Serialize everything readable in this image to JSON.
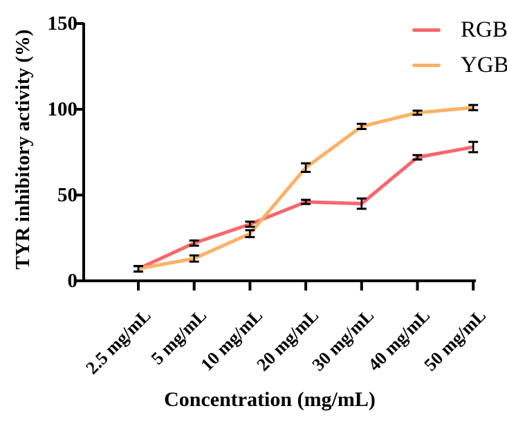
{
  "figure": {
    "background": "#ffffff",
    "axis_color": "#000000"
  },
  "chart_data": {
    "type": "line",
    "title": "",
    "xlabel": "Concentration (mg/mL)",
    "ylabel": "TYR inhibitory activity (%)",
    "categories": [
      "2.5 mg/mL",
      "5 mg/mL",
      "10 mg/mL",
      "20 mg/mL",
      "30 mg/mL",
      "40 mg/mL",
      "50 mg/mL"
    ],
    "ylim": [
      0,
      150
    ],
    "yticks": [
      0,
      50,
      100,
      150
    ],
    "grid": false,
    "legend_position": "top-right",
    "error_bars": true,
    "error_bar_color": "#000000",
    "series": [
      {
        "name": "RGB",
        "color": "#F6676D",
        "values": [
          7,
          22,
          33,
          46,
          45,
          72,
          78
        ],
        "errors": [
          1.6,
          1.5,
          1.5,
          1.2,
          3,
          1.3,
          3
        ]
      },
      {
        "name": "YGB",
        "color": "#FBB266",
        "values": [
          7,
          13,
          27.5,
          66,
          90,
          98,
          101
        ],
        "errors": [
          1.6,
          1.8,
          2,
          2.5,
          1.5,
          1.2,
          1.5
        ]
      }
    ]
  }
}
